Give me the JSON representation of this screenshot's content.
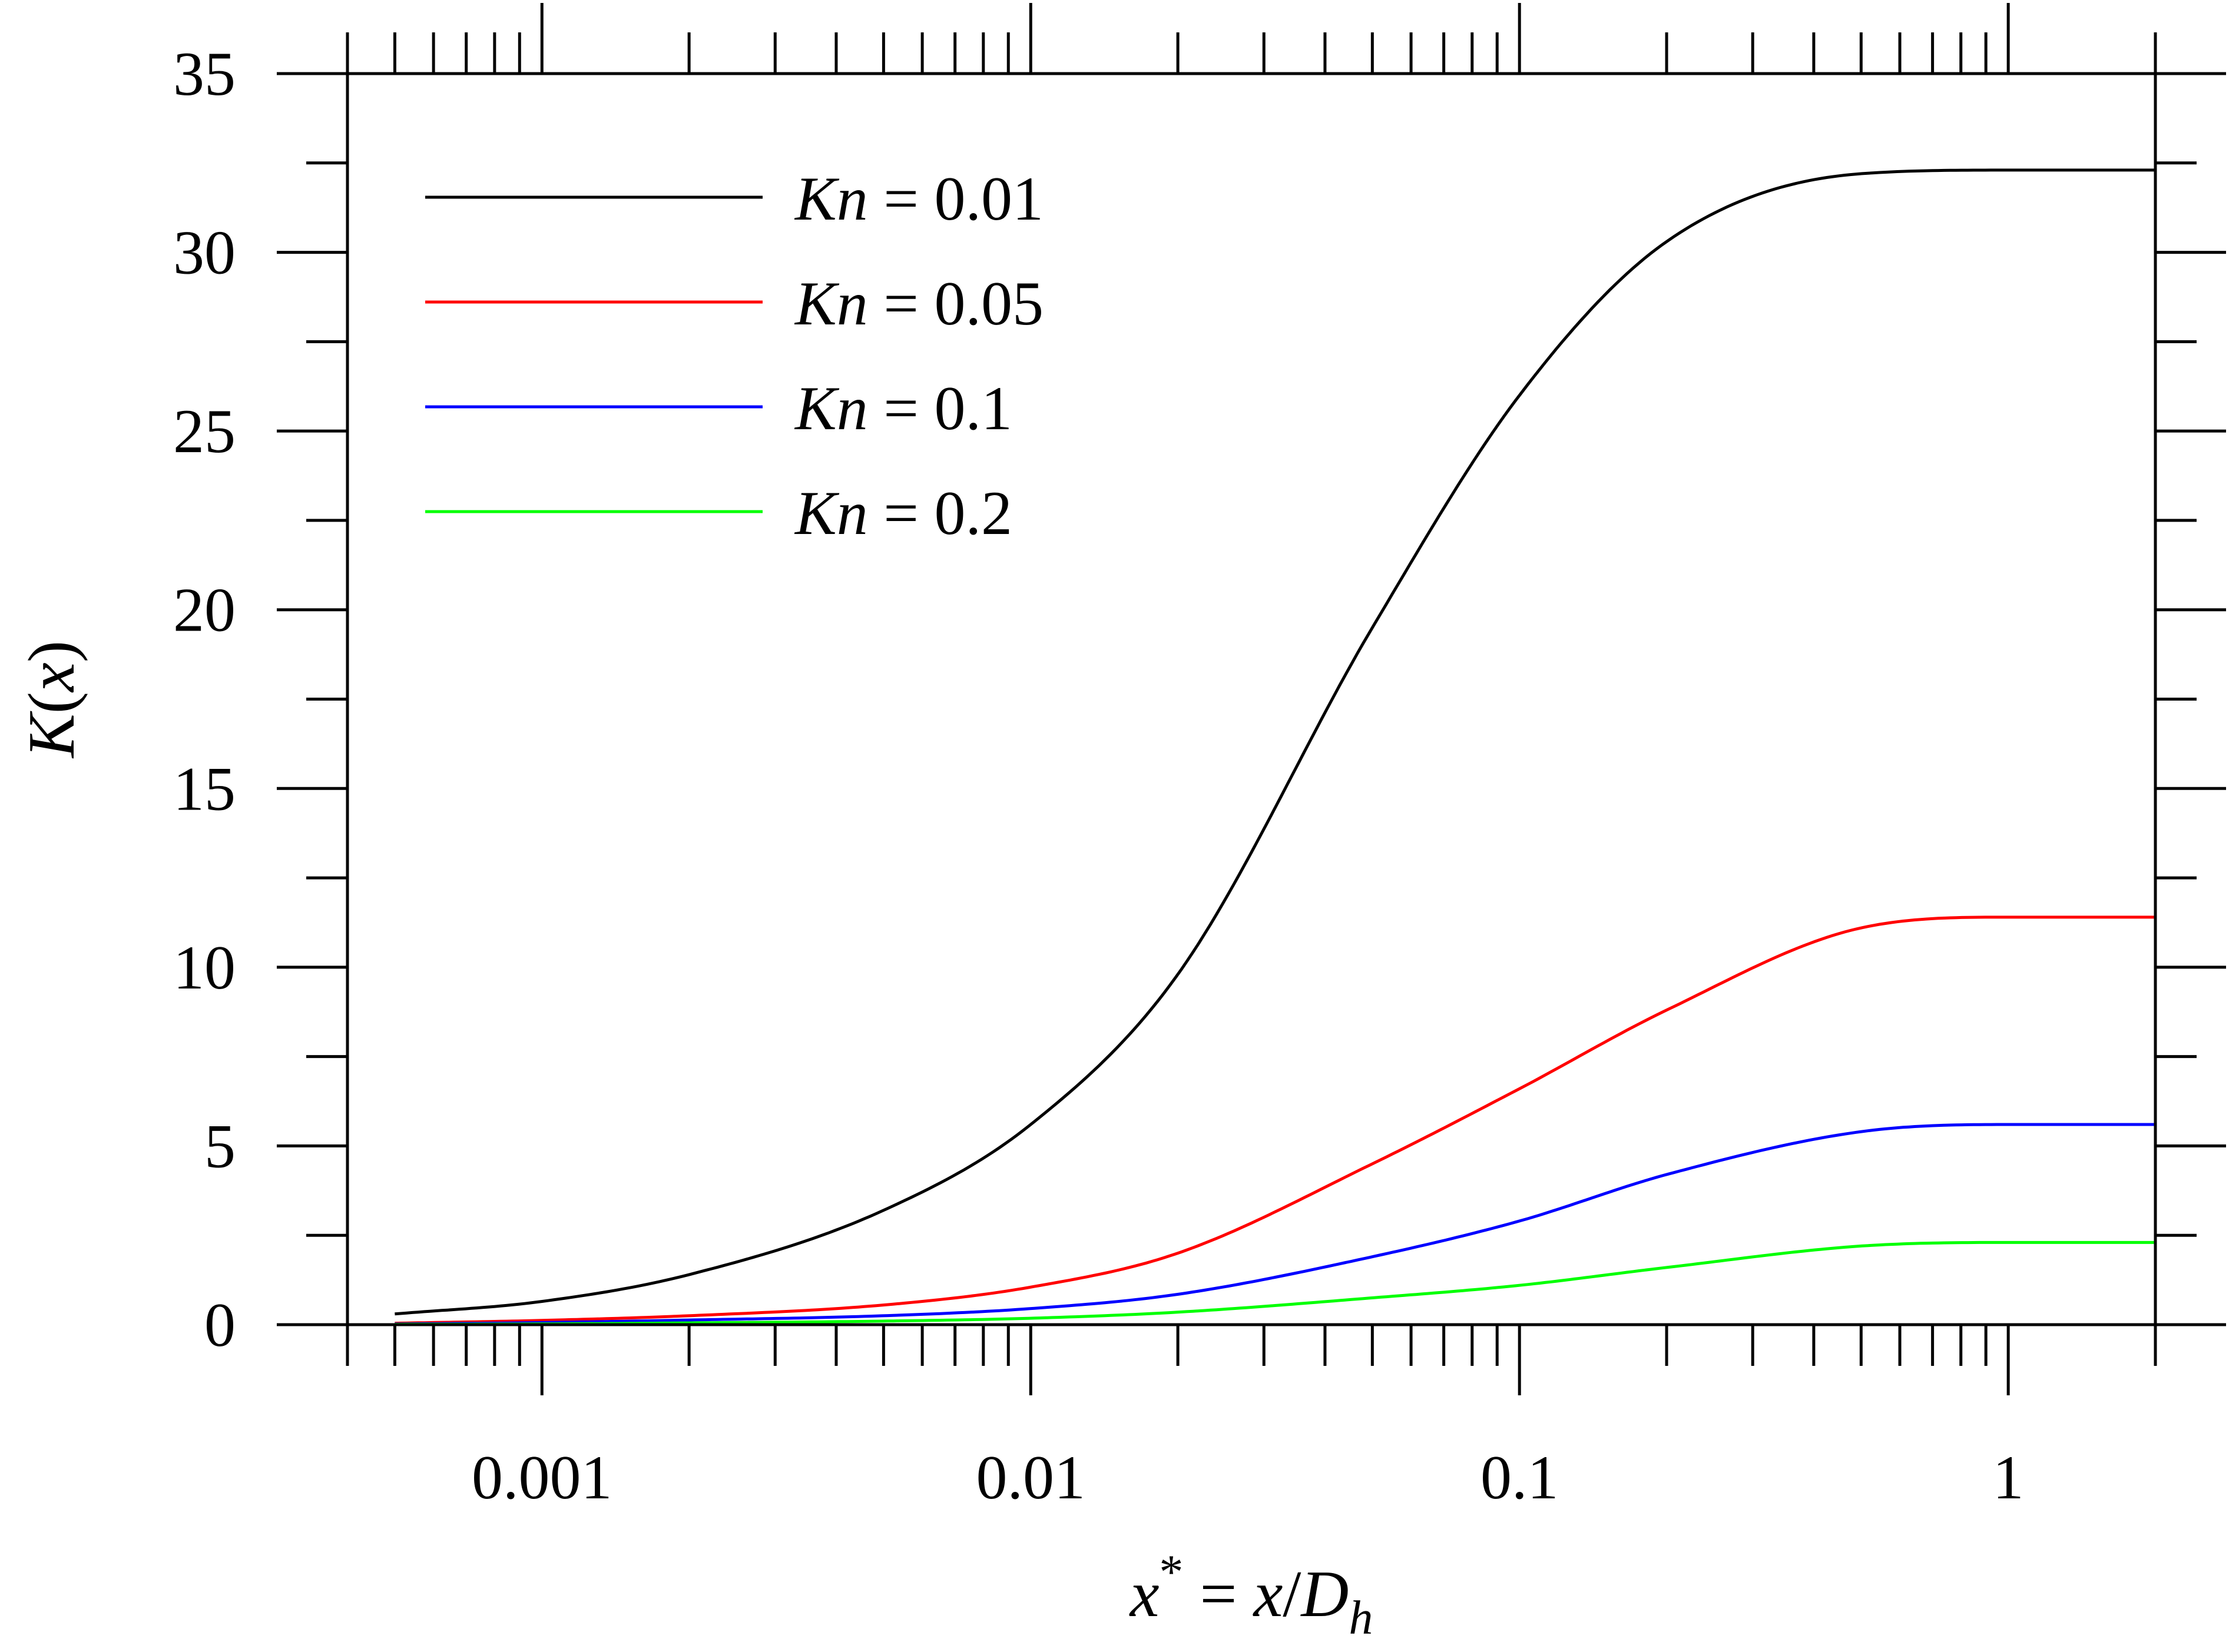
{
  "chart_data": {
    "type": "line",
    "title": "",
    "xlabel": "x* = x/Dh",
    "xlabel_parts": {
      "base": "x",
      "sup": "*",
      "middle": " = ",
      "x": "x",
      "slash": "/",
      "D": "D",
      "sub": "h"
    },
    "ylabel": "K(x)",
    "ylabel_parts": {
      "K": "K",
      "open": "(",
      "x": "x",
      "close": ")"
    },
    "xscale": "log",
    "xlim": [
      0.0004,
      2
    ],
    "ylim": [
      0,
      35
    ],
    "x_ticks": [
      0.001,
      0.01,
      0.1,
      1
    ],
    "x_tick_labels": [
      "0.001",
      "0.01",
      "0.1",
      "1"
    ],
    "y_ticks": [
      0,
      5,
      10,
      15,
      20,
      25,
      30,
      35
    ],
    "y_tick_labels": [
      "0",
      "5",
      "10",
      "15",
      "20",
      "25",
      "30",
      "35"
    ],
    "grid": false,
    "legend_position": "top-left",
    "x": [
      0.0005,
      0.001,
      0.002,
      0.005,
      0.01,
      0.02,
      0.05,
      0.1,
      0.2,
      0.5,
      1,
      2
    ],
    "series": [
      {
        "name": "Kn = 0.01",
        "name_italic": "Kn",
        "name_rest": " = 0.01",
        "color": "#000000",
        "values": [
          0.3,
          0.65,
          1.4,
          3.2,
          5.6,
          9.8,
          19.5,
          26.0,
          30.3,
          32.2,
          32.3,
          32.3
        ]
      },
      {
        "name": "Kn = 0.05",
        "name_italic": "Kn",
        "name_rest": " = 0.05",
        "color": "#ff0000",
        "values": [
          0.04,
          0.12,
          0.25,
          0.55,
          1.05,
          2.0,
          4.5,
          6.6,
          8.8,
          11.1,
          11.4,
          11.4
        ]
      },
      {
        "name": "Kn = 0.1",
        "name_italic": "Kn",
        "name_rest": " = 0.1",
        "color": "#0000ff",
        "values": [
          0.02,
          0.06,
          0.13,
          0.25,
          0.45,
          0.85,
          1.9,
          2.9,
          4.2,
          5.4,
          5.6,
          5.6
        ]
      },
      {
        "name": "Kn = 0.2",
        "name_italic": "Kn",
        "name_rest": " = 0.2",
        "color": "#00ff00",
        "values": [
          0.01,
          0.02,
          0.05,
          0.1,
          0.18,
          0.35,
          0.75,
          1.1,
          1.6,
          2.2,
          2.3,
          2.3
        ]
      }
    ]
  }
}
